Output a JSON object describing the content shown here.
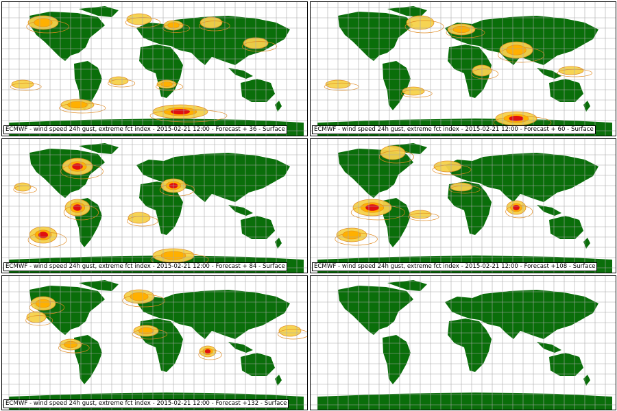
{
  "colors": {
    "land": "#0a6e0a",
    "ocean": "#ffffff",
    "grid": "#a8a8a8",
    "contour_light": "#f6d24a",
    "contour_mid": "#ffb000",
    "contour_high": "#e01010",
    "contour_line": "#e08a20"
  },
  "panels": [
    {
      "caption": "ECMWF - wind speed 24h gust, extreme fct index - 2015-02-21 12:00 - Forecast + 36 - Surface",
      "has_caption": true
    },
    {
      "caption": "ECMWF - wind speed 24h gust, extreme fct index - 2015-02-21 12:00 - Forecast + 60 - Surface",
      "has_caption": true
    },
    {
      "caption": "ECMWF - wind speed 24h gust, extreme fct index - 2015-02-21 12:00 - Forecast + 84 - Surface",
      "has_caption": true
    },
    {
      "caption": "ECMWF - wind speed 24h gust, extreme fct index - 2015-02-21 12:00 - Forecast +108 - Surface",
      "has_caption": true
    },
    {
      "caption": "ECMWF - wind speed 24h gust, extreme fct index - 2015-02-21 12:00 - Forecast +132 - Surface",
      "has_caption": true
    },
    {
      "caption": "",
      "has_caption": false
    }
  ]
}
